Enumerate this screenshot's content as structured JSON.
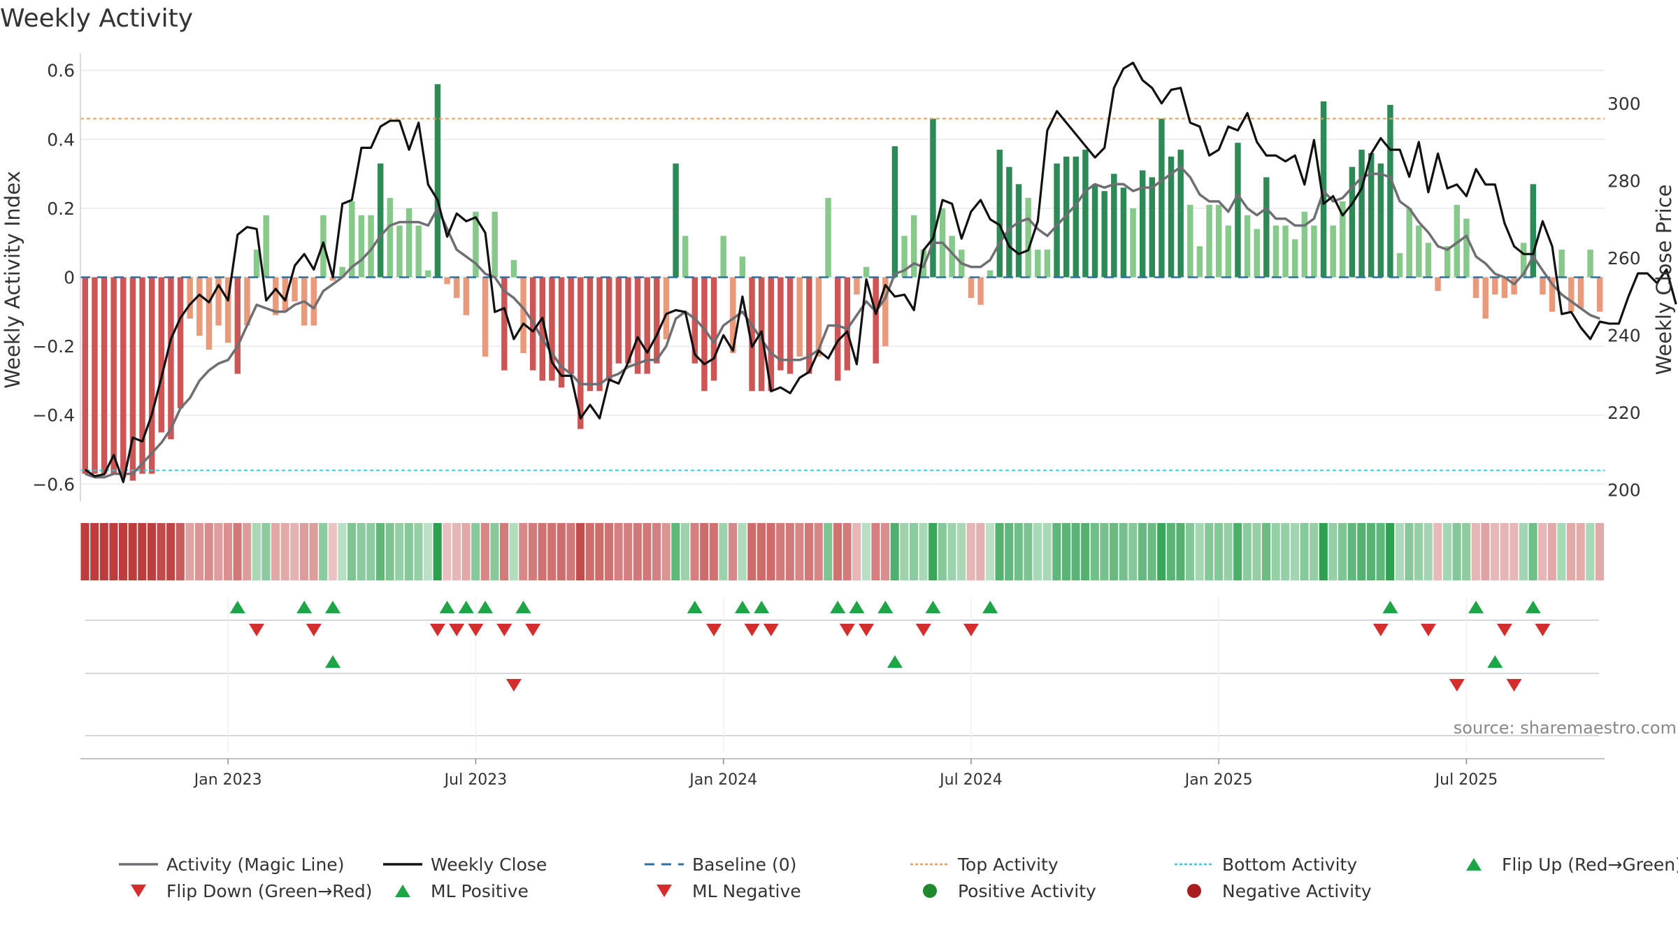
{
  "chart_data": {
    "type": "bar",
    "title": "Weekly Activity",
    "ylabel": "Weekly Activity Index",
    "ylabel_right": "Weekly Close Price",
    "source": "source: sharemaestro.com",
    "ylim": [
      -0.65,
      0.65
    ],
    "ylim_right": [
      197,
      313
    ],
    "yticks": [
      {
        "v": 0.6,
        "label": "0.6"
      },
      {
        "v": 0.4,
        "label": "0.4"
      },
      {
        "v": 0.2,
        "label": "0.2"
      },
      {
        "v": 0,
        "label": "0"
      },
      {
        "v": -0.2,
        "label": "−0.2"
      },
      {
        "v": -0.4,
        "label": "−0.4"
      },
      {
        "v": -0.6,
        "label": "−0.6"
      }
    ],
    "yticks_right": [
      {
        "v": 300,
        "label": "300"
      },
      {
        "v": 280,
        "label": "280"
      },
      {
        "v": 260,
        "label": "260"
      },
      {
        "v": 240,
        "label": "240"
      },
      {
        "v": 220,
        "label": "220"
      },
      {
        "v": 200,
        "label": "200"
      }
    ],
    "xticks": [
      {
        "week": 15,
        "label": "Jan 2023"
      },
      {
        "week": 41,
        "label": "Jul 2023"
      },
      {
        "week": 67,
        "label": "Jan 2024"
      },
      {
        "week": 93,
        "label": "Jul 2024"
      },
      {
        "week": 119,
        "label": "Jan 2025"
      },
      {
        "week": 145,
        "label": "Jul 2025"
      }
    ],
    "top_activity": 0.46,
    "bottom_activity": -0.56,
    "activity": [
      -0.57,
      -0.57,
      -0.57,
      -0.57,
      -0.58,
      -0.59,
      -0.57,
      -0.57,
      -0.45,
      -0.47,
      -0.38,
      -0.12,
      -0.17,
      -0.21,
      -0.14,
      -0.19,
      -0.28,
      -0.14,
      0.08,
      0.18,
      -0.11,
      -0.1,
      -0.07,
      -0.14,
      -0.14,
      0.18,
      -0.01,
      0.03,
      0.22,
      0.18,
      0.18,
      0.33,
      0.23,
      0.15,
      0.2,
      0.15,
      0.02,
      0.56,
      -0.02,
      -0.06,
      -0.11,
      0.19,
      -0.23,
      0.19,
      -0.27,
      0.05,
      -0.22,
      -0.27,
      -0.3,
      -0.3,
      -0.32,
      -0.28,
      -0.44,
      -0.33,
      -0.33,
      -0.3,
      -0.25,
      -0.25,
      -0.28,
      -0.28,
      -0.25,
      -0.18,
      0.33,
      0.12,
      -0.25,
      -0.33,
      -0.3,
      0.12,
      -0.22,
      0.06,
      -0.33,
      -0.33,
      -0.33,
      -0.27,
      -0.28,
      -0.23,
      -0.28,
      -0.23,
      0.23,
      -0.3,
      -0.27,
      -0.05,
      0.03,
      -0.25,
      -0.2,
      0.38,
      0.12,
      0.18,
      0.08,
      0.46,
      0.2,
      0.12,
      0.08,
      -0.06,
      -0.08,
      0.02,
      0.37,
      0.32,
      0.27,
      0.23,
      0.08,
      0.08,
      0.33,
      0.35,
      0.35,
      0.37,
      0.27,
      0.25,
      0.3,
      0.26,
      0.2,
      0.31,
      0.29,
      0.46,
      0.35,
      0.37,
      0.21,
      0.09,
      0.21,
      0.21,
      0.15,
      0.39,
      0.18,
      0.14,
      0.29,
      0.15,
      0.15,
      0.11,
      0.19,
      0.15,
      0.51,
      0.15,
      0.22,
      0.32,
      0.37,
      0.36,
      0.33,
      0.5,
      0.07,
      0.2,
      0.15,
      0.1,
      -0.04,
      0.09,
      0.21,
      0.17,
      -0.06,
      -0.12,
      -0.05,
      -0.06,
      -0.05,
      0.1,
      0.27,
      -0.05,
      -0.1,
      0.08,
      -0.1,
      -0.09,
      0.08,
      -0.1
    ],
    "magic_line": [
      -0.57,
      -0.58,
      -0.58,
      -0.57,
      -0.57,
      -0.57,
      -0.54,
      -0.51,
      -0.48,
      -0.44,
      -0.38,
      -0.35,
      -0.3,
      -0.27,
      -0.25,
      -0.24,
      -0.2,
      -0.14,
      -0.08,
      -0.09,
      -0.1,
      -0.1,
      -0.08,
      -0.07,
      -0.09,
      -0.04,
      -0.02,
      0.0,
      0.03,
      0.05,
      0.08,
      0.12,
      0.15,
      0.16,
      0.16,
      0.16,
      0.15,
      0.2,
      0.14,
      0.08,
      0.06,
      0.04,
      0.01,
      0.0,
      -0.04,
      -0.06,
      -0.09,
      -0.13,
      -0.18,
      -0.22,
      -0.26,
      -0.28,
      -0.31,
      -0.31,
      -0.31,
      -0.29,
      -0.28,
      -0.26,
      -0.25,
      -0.24,
      -0.24,
      -0.2,
      -0.12,
      -0.1,
      -0.12,
      -0.15,
      -0.19,
      -0.14,
      -0.12,
      -0.1,
      -0.14,
      -0.18,
      -0.22,
      -0.24,
      -0.24,
      -0.24,
      -0.23,
      -0.21,
      -0.14,
      -0.14,
      -0.15,
      -0.11,
      -0.07,
      -0.1,
      -0.06,
      0.01,
      0.02,
      0.04,
      0.03,
      0.1,
      0.1,
      0.07,
      0.04,
      0.03,
      0.03,
      0.05,
      0.1,
      0.14,
      0.16,
      0.17,
      0.14,
      0.12,
      0.15,
      0.18,
      0.21,
      0.25,
      0.27,
      0.26,
      0.27,
      0.27,
      0.25,
      0.26,
      0.26,
      0.28,
      0.3,
      0.32,
      0.29,
      0.24,
      0.22,
      0.22,
      0.19,
      0.24,
      0.2,
      0.18,
      0.2,
      0.17,
      0.17,
      0.15,
      0.15,
      0.17,
      0.25,
      0.22,
      0.23,
      0.26,
      0.29,
      0.3,
      0.3,
      0.29,
      0.22,
      0.2,
      0.16,
      0.13,
      0.09,
      0.08,
      0.1,
      0.12,
      0.06,
      0.04,
      0.01,
      0.0,
      -0.02,
      0.01,
      0.06,
      0.02,
      -0.02,
      -0.05,
      -0.07,
      -0.09,
      -0.11,
      -0.12
    ],
    "weekly_close": [
      205.2,
      203.5,
      204.0,
      209.0,
      202.0,
      213.5,
      212.5,
      219.5,
      229.0,
      239.0,
      244.5,
      248.0,
      250.5,
      248.5,
      253.0,
      249.0,
      266.0,
      268.0,
      267.5,
      249.0,
      252.0,
      249.0,
      258.0,
      261.0,
      257.0,
      264.0,
      255.0,
      274.0,
      275.0,
      288.5,
      288.5,
      294.0,
      295.5,
      295.5,
      288.0,
      295.0,
      279.0,
      275.0,
      265.5,
      271.5,
      269.5,
      270.5,
      266.5,
      246.0,
      247.0,
      239.0,
      243.0,
      241.0,
      244.5,
      233.0,
      229.5,
      229.5,
      218.5,
      222.0,
      218.5,
      228.5,
      227.5,
      233.0,
      239.5,
      235.5,
      240.0,
      245.5,
      246.5,
      246.0,
      235.0,
      232.5,
      234.0,
      240.0,
      236.0,
      250.0,
      237.0,
      241.0,
      225.5,
      226.5,
      225.0,
      229.0,
      230.5,
      236.0,
      234.0,
      238.5,
      241.0,
      232.5,
      254.5,
      245.5,
      253.0,
      250.0,
      250.5,
      246.5,
      262.0,
      265.0,
      275.0,
      274.0,
      265.0,
      272.0,
      275.0,
      270.0,
      268.5,
      263.0,
      261.0,
      262.0,
      269.5,
      293.0,
      298.0,
      295.0,
      292.0,
      289.0,
      286.0,
      288.5,
      304.0,
      309.0,
      310.5,
      306.0,
      304.0,
      300.0,
      303.5,
      304.0,
      295.0,
      294.0,
      286.5,
      288.0,
      294.0,
      293.0,
      297.5,
      290.0,
      286.5,
      286.5,
      285.0,
      286.5,
      279.0,
      290.5,
      274.0,
      276.0,
      271.0,
      274.0,
      278.0,
      287.0,
      291.0,
      288.0,
      288.0,
      281.0,
      290.0,
      277.0,
      287.0,
      278.0,
      279.0,
      276.0,
      283.0,
      279.0,
      279.0,
      269.0,
      263.0,
      261.0,
      261.0,
      269.5,
      263.0,
      245.5,
      246.0,
      242.0,
      239.0,
      243.5,
      243.0,
      243.0,
      250.0,
      256.0,
      256.0,
      253.5,
      257.0,
      248.0
    ],
    "flip_up": [
      16,
      23,
      26,
      38,
      40,
      42,
      46,
      64,
      69,
      71,
      79,
      81,
      84,
      89,
      95,
      137,
      146,
      152
    ],
    "flip_down": [
      18,
      24,
      37,
      39,
      41,
      44,
      47,
      66,
      70,
      72,
      80,
      82,
      88,
      93,
      136,
      141,
      149,
      153
    ],
    "ml_positive": [
      26,
      85,
      148
    ],
    "ml_negative": [
      45,
      144,
      150
    ],
    "legend": [
      {
        "label": "Activity (Magic Line)",
        "marker": "line",
        "color": "#6e6e73"
      },
      {
        "label": "Weekly Close",
        "marker": "line",
        "color": "#111111"
      },
      {
        "label": "Baseline (0)",
        "marker": "dash",
        "color": "#2e6fa3"
      },
      {
        "label": "Top Activity",
        "marker": "dot-line",
        "color": "#e8a060"
      },
      {
        "label": "Bottom Activity",
        "marker": "dot-line",
        "color": "#3cc6d6"
      },
      {
        "label": "Flip Up (Red→Green)",
        "marker": "triangle-up",
        "color": "#1fa447"
      },
      {
        "label": "Flip Down (Green→Red)",
        "marker": "triangle-down",
        "color": "#d42d2d"
      },
      {
        "label": "ML Positive",
        "marker": "triangle-up",
        "color": "#1fa447"
      },
      {
        "label": "ML Negative",
        "marker": "triangle-down",
        "color": "#d42d2d"
      },
      {
        "label": "Positive Activity",
        "marker": "circle",
        "color": "#1d8a2e"
      },
      {
        "label": "Negative Activity",
        "marker": "circle",
        "color": "#a81e1e"
      }
    ],
    "colors": {
      "pos_strong": "#2d8a57",
      "pos_light": "#86c98a",
      "neg_strong": "#cc5555",
      "neg_light": "#e99a7b",
      "up": "#1fa447",
      "down": "#d42d2d"
    }
  }
}
